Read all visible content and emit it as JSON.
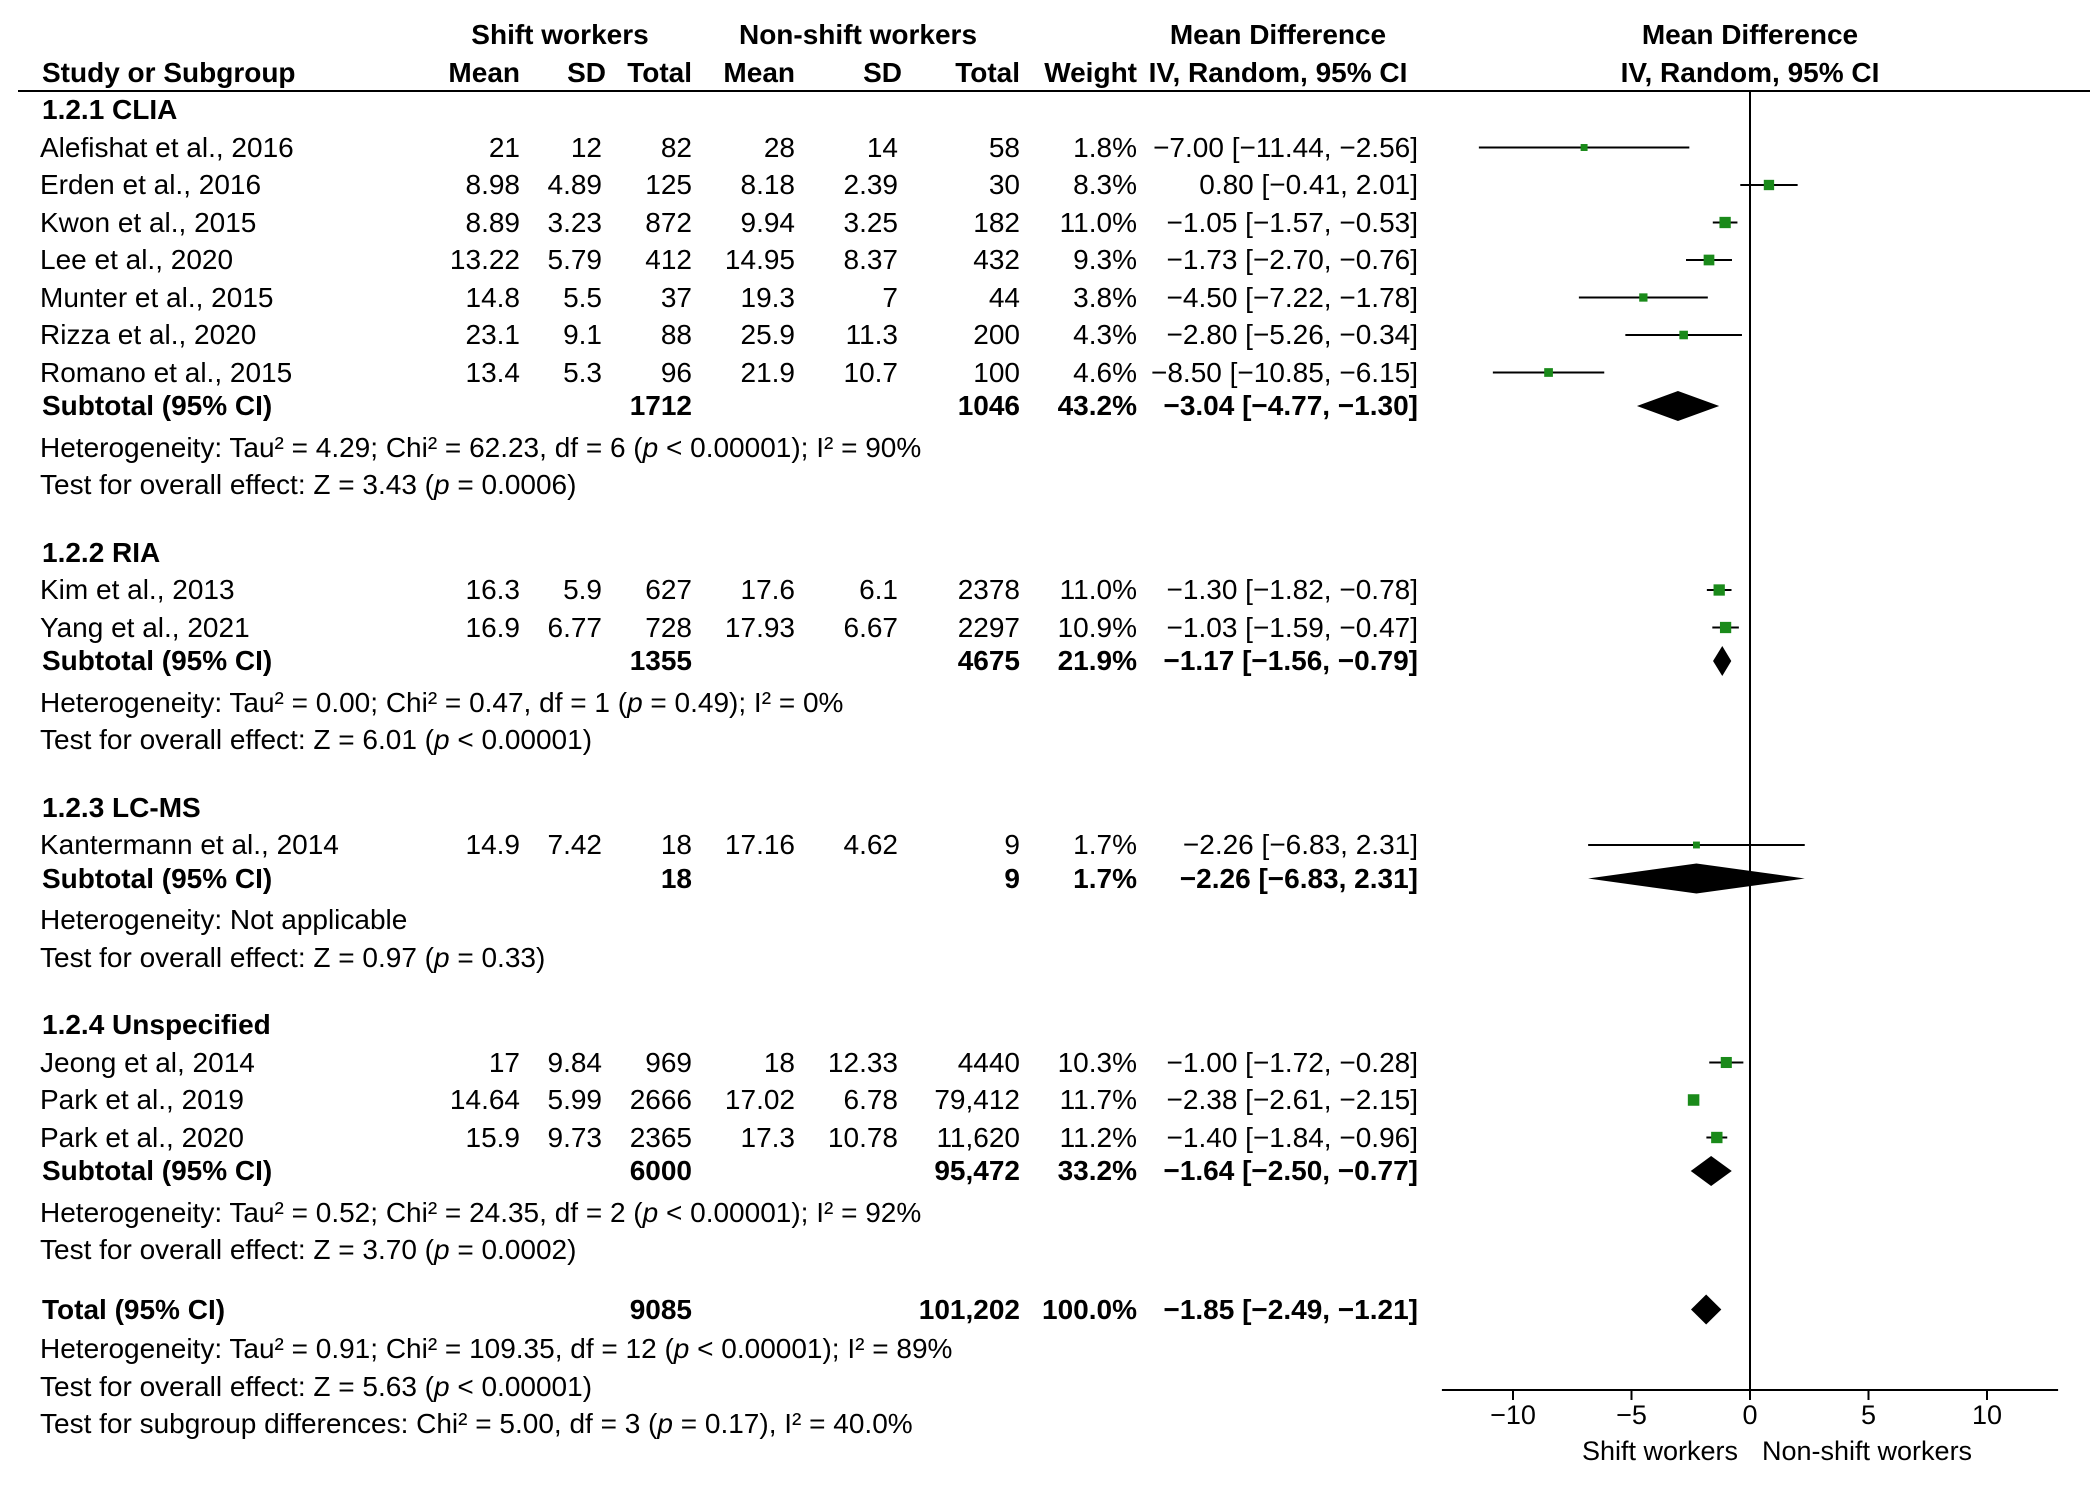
{
  "chart_data": {
    "type": "forest",
    "headers": {
      "group_shift": "Shift workers",
      "group_nonshift": "Non-shift workers",
      "md_table": "Mean Difference",
      "md_table_sub": "IV, Random, 95% CI",
      "md_plot": "Mean Difference",
      "md_plot_sub": "IV, Random, 95% CI",
      "study": "Study or Subgroup",
      "mean1": "Mean",
      "sd1": "SD",
      "total1": "Total",
      "mean2": "Mean",
      "sd2": "SD",
      "total2": "Total",
      "weight": "Weight"
    },
    "subgroups": [
      {
        "title": "1.2.1 CLIA",
        "studies": [
          {
            "name": "Alefishat et al., 2016",
            "mean1": "21",
            "sd1": "12",
            "total1": "82",
            "mean2": "28",
            "sd2": "14",
            "total2": "58",
            "weight": "1.8%",
            "ci_text": "−7.00 [−11.44, −2.56]",
            "md": -7.0,
            "lo": -11.44,
            "hi": -2.56,
            "w": 1.8
          },
          {
            "name": "Erden et al., 2016",
            "mean1": "8.98",
            "sd1": "4.89",
            "total1": "125",
            "mean2": "8.18",
            "sd2": "2.39",
            "total2": "30",
            "weight": "8.3%",
            "ci_text": "0.80 [−0.41,  2.01]",
            "md": 0.8,
            "lo": -0.41,
            "hi": 2.01,
            "w": 8.3
          },
          {
            "name": "Kwon et al., 2015",
            "mean1": "8.89",
            "sd1": "3.23",
            "total1": "872",
            "mean2": "9.94",
            "sd2": "3.25",
            "total2": "182",
            "weight": "11.0%",
            "ci_text": "−1.05 [−1.57, −0.53]",
            "md": -1.05,
            "lo": -1.57,
            "hi": -0.53,
            "w": 11.0
          },
          {
            "name": "Lee et al., 2020",
            "mean1": "13.22",
            "sd1": "5.79",
            "total1": "412",
            "mean2": "14.95",
            "sd2": "8.37",
            "total2": "432",
            "weight": "9.3%",
            "ci_text": "−1.73 [−2.70, −0.76]",
            "md": -1.73,
            "lo": -2.7,
            "hi": -0.76,
            "w": 9.3
          },
          {
            "name": "Munter et al., 2015",
            "mean1": "14.8",
            "sd1": "5.5",
            "total1": "37",
            "mean2": "19.3",
            "sd2": "7",
            "total2": "44",
            "weight": "3.8%",
            "ci_text": "−4.50 [−7.22, −1.78]",
            "md": -4.5,
            "lo": -7.22,
            "hi": -1.78,
            "w": 3.8
          },
          {
            "name": "Rizza et al., 2020",
            "mean1": "23.1",
            "sd1": "9.1",
            "total1": "88",
            "mean2": "25.9",
            "sd2": "11.3",
            "total2": "200",
            "weight": "4.3%",
            "ci_text": "−2.80 [−5.26, −0.34]",
            "md": -2.8,
            "lo": -5.26,
            "hi": -0.34,
            "w": 4.3
          },
          {
            "name": "Romano et al., 2015",
            "mean1": "13.4",
            "sd1": "5.3",
            "total1": "96",
            "mean2": "21.9",
            "sd2": "10.7",
            "total2": "100",
            "weight": "4.6%",
            "ci_text": "−8.50 [−10.85, −6.15]",
            "md": -8.5,
            "lo": -10.85,
            "hi": -6.15,
            "w": 4.6
          }
        ],
        "subtotal": {
          "label": "Subtotal (95% CI)",
          "total1": "1712",
          "total2": "1046",
          "weight": "43.2%",
          "ci_text": "−3.04 [−4.77, −1.30]",
          "md": -3.04,
          "lo": -4.77,
          "hi": -1.3
        },
        "het": "Heterogeneity: Tau² = 4.29; Chi² = 62.23, df = 6 (p < 0.00001); I² = 90%",
        "het_parts": [
          "Heterogeneity: Tau² = 4.29; Chi² = 62.23, df = 6 (",
          "p",
          " < 0.00001); I² = 90%"
        ],
        "test": "Test for overall effect: Z = 3.43 (p = 0.0006)",
        "test_parts": [
          "Test for overall effect: Z = 3.43 (",
          "p",
          " = 0.0006)"
        ]
      },
      {
        "title": "1.2.2 RIA",
        "studies": [
          {
            "name": "Kim et al., 2013",
            "mean1": "16.3",
            "sd1": "5.9",
            "total1": "627",
            "mean2": "17.6",
            "sd2": "6.1",
            "total2": "2378",
            "weight": "11.0%",
            "ci_text": "−1.30 [−1.82, −0.78]",
            "md": -1.3,
            "lo": -1.82,
            "hi": -0.78,
            "w": 11.0
          },
          {
            "name": "Yang et al., 2021",
            "mean1": "16.9",
            "sd1": "6.77",
            "total1": "728",
            "mean2": "17.93",
            "sd2": "6.67",
            "total2": "2297",
            "weight": "10.9%",
            "ci_text": "−1.03 [−1.59, −0.47]",
            "md": -1.03,
            "lo": -1.59,
            "hi": -0.47,
            "w": 10.9
          }
        ],
        "subtotal": {
          "label": "Subtotal (95% CI)",
          "total1": "1355",
          "total2": "4675",
          "weight": "21.9%",
          "ci_text": "−1.17 [−1.56, −0.79]",
          "md": -1.17,
          "lo": -1.56,
          "hi": -0.79
        },
        "het": "Heterogeneity: Tau² = 0.00; Chi² = 0.47, df = 1 (p = 0.49); I² = 0%",
        "het_parts": [
          "Heterogeneity: Tau² = 0.00; Chi² = 0.47, df = 1 (",
          "p",
          " = 0.49); I² = 0%"
        ],
        "test": "Test for overall effect: Z = 6.01 (p < 0.00001)",
        "test_parts": [
          "Test for overall effect: Z = 6.01 (",
          "p",
          " < 0.00001)"
        ]
      },
      {
        "title": "1.2.3 LC-MS",
        "studies": [
          {
            "name": "Kantermann et al., 2014",
            "mean1": "14.9",
            "sd1": "7.42",
            "total1": "18",
            "mean2": "17.16",
            "sd2": "4.62",
            "total2": "9",
            "weight": "1.7%",
            "ci_text": "−2.26 [−6.83,  2.31]",
            "md": -2.26,
            "lo": -6.83,
            "hi": 2.31,
            "w": 1.7
          }
        ],
        "subtotal": {
          "label": "Subtotal (95% CI)",
          "total1": "18",
          "total2": "9",
          "weight": "1.7%",
          "ci_text": "−2.26 [−6.83,  2.31]",
          "md": -2.26,
          "lo": -6.83,
          "hi": 2.31
        },
        "het": "Heterogeneity: Not applicable",
        "het_parts": [
          "Heterogeneity: Not applicable",
          "",
          ""
        ],
        "test": "Test for overall effect: Z = 0.97 (p = 0.33)",
        "test_parts": [
          "Test for overall effect: Z = 0.97 (",
          "p",
          " = 0.33)"
        ]
      },
      {
        "title": "1.2.4 Unspecified",
        "studies": [
          {
            "name": "Jeong et al, 2014",
            "mean1": "17",
            "sd1": "9.84",
            "total1": "969",
            "mean2": "18",
            "sd2": "12.33",
            "total2": "4440",
            "weight": "10.3%",
            "ci_text": "−1.00 [−1.72, −0.28]",
            "md": -1.0,
            "lo": -1.72,
            "hi": -0.28,
            "w": 10.3
          },
          {
            "name": "Park et al., 2019",
            "mean1": "14.64",
            "sd1": "5.99",
            "total1": "2666",
            "mean2": "17.02",
            "sd2": "6.78",
            "total2": "79,412",
            "weight": "11.7%",
            "ci_text": "−2.38 [−2.61, −2.15]",
            "md": -2.38,
            "lo": -2.61,
            "hi": -2.15,
            "w": 11.7
          },
          {
            "name": "Park et al., 2020",
            "mean1": "15.9",
            "sd1": "9.73",
            "total1": "2365",
            "mean2": "17.3",
            "sd2": "10.78",
            "total2": "11,620",
            "weight": "11.2%",
            "ci_text": "−1.40 [−1.84, −0.96]",
            "md": -1.4,
            "lo": -1.84,
            "hi": -0.96,
            "w": 11.2
          }
        ],
        "subtotal": {
          "label": "Subtotal (95% CI)",
          "total1": "6000",
          "total2": "95,472",
          "weight": "33.2%",
          "ci_text": "−1.64 [−2.50, −0.77]",
          "md": -1.64,
          "lo": -2.5,
          "hi": -0.77
        },
        "het": "Heterogeneity: Tau² = 0.52; Chi² = 24.35, df = 2 (p < 0.00001); I² = 92%",
        "het_parts": [
          "Heterogeneity: Tau² = 0.52; Chi² = 24.35, df = 2 (",
          "p",
          " < 0.00001); I² = 92%"
        ],
        "test": "Test for overall effect: Z = 3.70 (p = 0.0002)",
        "test_parts": [
          "Test for overall effect: Z = 3.70 (",
          "p",
          " = 0.0002)"
        ]
      }
    ],
    "total": {
      "label": "Total (95% CI)",
      "total1": "9085",
      "total2": "101,202",
      "weight": "100.0%",
      "ci_text": "−1.85 [−2.49, −1.21]",
      "md": -1.85,
      "lo": -2.49,
      "hi": -1.21
    },
    "footer": [
      {
        "text": "Heterogeneity: Tau² = 0.91; Chi² = 109.35, df = 12 (p < 0.00001); I² = 89%",
        "parts": [
          "Heterogeneity: Tau² = 0.91; Chi² = 109.35, df = 12 (",
          "p",
          " < 0.00001); I² = 89%"
        ]
      },
      {
        "text": "Test for overall effect: Z = 5.63 (p < 0.00001)",
        "parts": [
          "Test for overall effect: Z = 5.63 (",
          "p",
          " < 0.00001)"
        ]
      },
      {
        "text": "Test for subgroup differences: Chi² = 5.00, df = 3 (p = 0.17), I² = 40.0%",
        "parts": [
          "Test for subgroup differences: Chi² = 5.00, df = 3 (",
          "p",
          " = 0.17), I² = 40.0%"
        ]
      }
    ],
    "axis": {
      "min": -13,
      "max": 13,
      "ticks": [
        -10,
        -5,
        0,
        5,
        10
      ],
      "tick_labels": [
        "−10",
        "−5",
        "0",
        "5",
        "10"
      ],
      "label_left": "Shift workers",
      "label_right": "Non-shift workers"
    },
    "colors": {
      "marker": "#1a8a1a",
      "line": "#000000"
    }
  }
}
